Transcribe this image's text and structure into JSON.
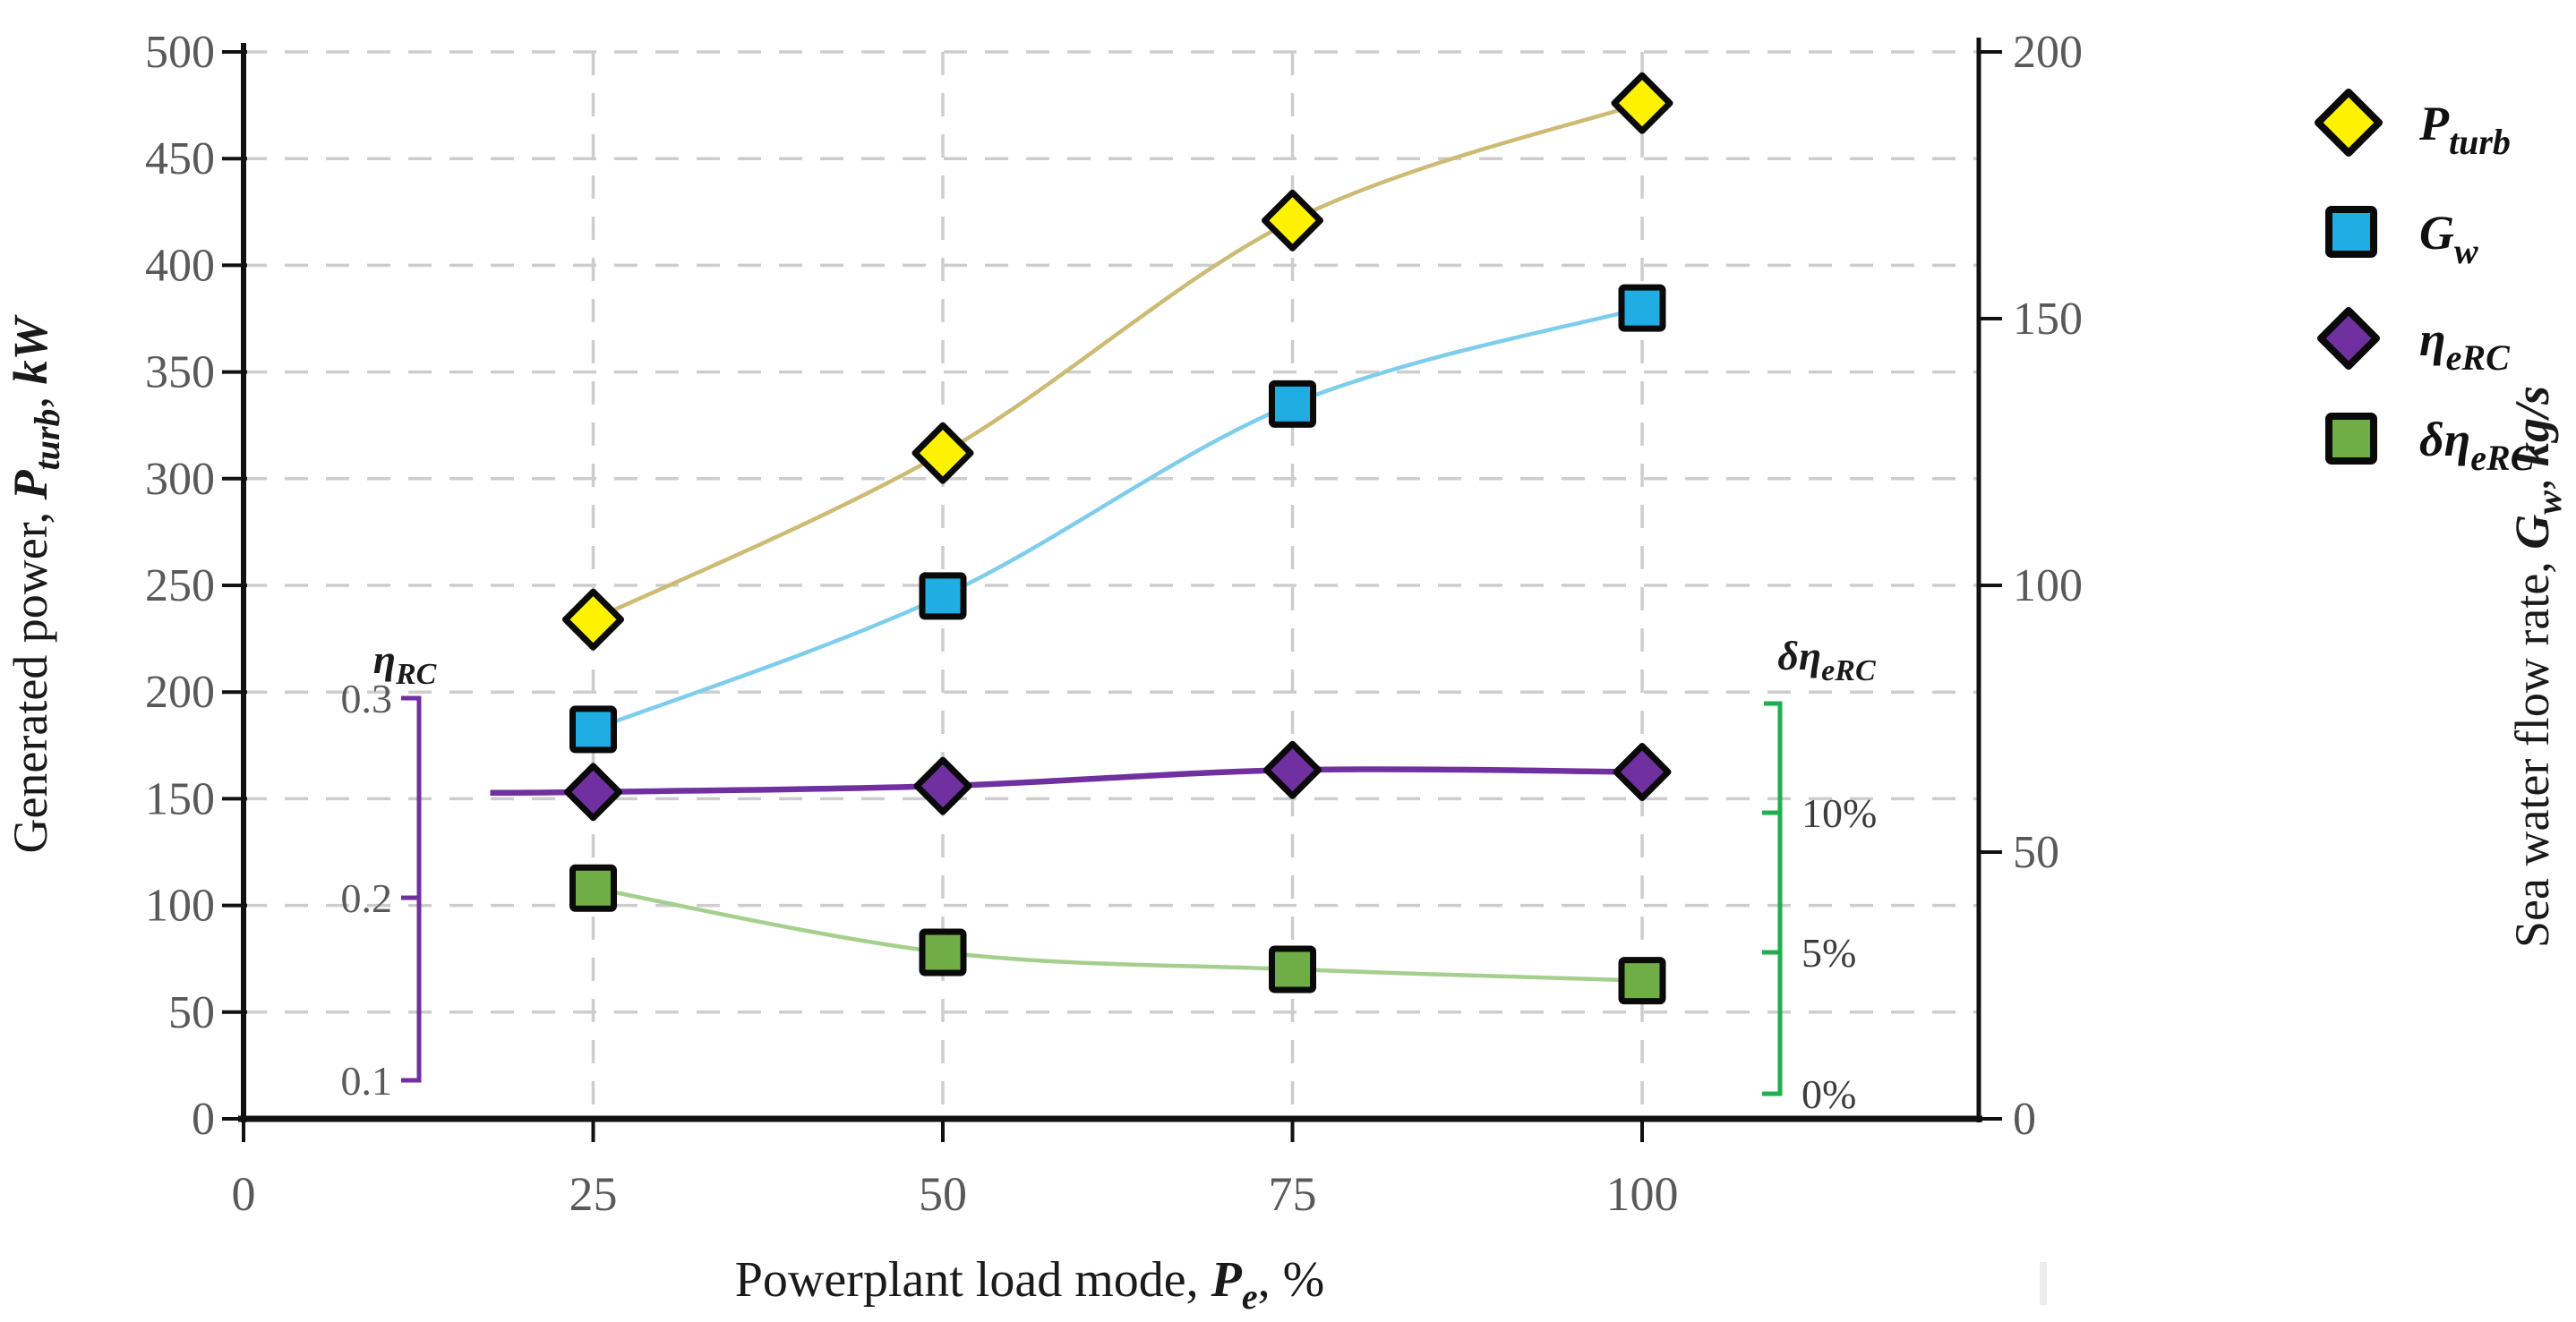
{
  "figure": {
    "background": "#ffffff",
    "artifact_color": "#ededed"
  },
  "chart_data": {
    "type": "line",
    "x": [
      25,
      50,
      75,
      100
    ],
    "x_axis": {
      "title_prefix": "Powerplant load mode, ",
      "title_sym": "P",
      "title_sub": "e",
      "title_suffix": ", %",
      "tick_labels": [
        "0",
        "25",
        "50",
        "75",
        "100"
      ],
      "tick_values": [
        0,
        25,
        50,
        75,
        100
      ],
      "range": [
        0,
        124
      ]
    },
    "left_axis": {
      "title_prefix": "Generated power, ",
      "title_sym": "P",
      "title_sub": "turb",
      "title_suffix": ", ",
      "title_unit": "kW",
      "tick_labels": [
        "0",
        "50",
        "100",
        "150",
        "200",
        "250",
        "300",
        "350",
        "400",
        "450",
        "500"
      ],
      "tick_values": [
        0,
        50,
        100,
        150,
        200,
        250,
        300,
        350,
        400,
        450,
        500
      ],
      "range": [
        0,
        500
      ]
    },
    "right_axis": {
      "title_prefix": "Sea water flow rate, ",
      "title_sym": "G",
      "title_sub": "w",
      "title_suffix": ", ",
      "title_unit": "kg/s",
      "tick_labels": [
        "0",
        "50",
        "100",
        "150",
        "200"
      ],
      "tick_values": [
        0,
        50,
        100,
        150,
        200
      ],
      "range": [
        0,
        200
      ]
    },
    "eta_axis": {
      "label_sym": "η",
      "label_sub": "RC",
      "tick_labels": [
        "0.1",
        "0.2",
        "0.3"
      ],
      "tick_values": [
        0.1,
        0.2,
        0.3
      ],
      "color": "#7030a0"
    },
    "delta_axis": {
      "label_sym": "δη",
      "label_sub": "eRC",
      "tick_labels": [
        "0%",
        "5%",
        "10%"
      ],
      "tick_values": [
        0,
        5,
        10
      ],
      "color": "#1eb04e"
    },
    "grid": {
      "on": true,
      "color": "#cdcdcd"
    },
    "axis_color": "#111111",
    "series": [
      {
        "name": "P_turb",
        "axis": "left",
        "units": "kW",
        "marker": "diamond",
        "marker_fill": "#fef200",
        "marker_edge": "#0a0a0a",
        "line_color": "#cdbb74",
        "values": [
          234,
          312,
          421,
          476
        ]
      },
      {
        "name": "G_w",
        "axis": "right",
        "units": "kg/s",
        "marker": "square",
        "marker_fill": "#1fade4",
        "marker_edge": "#0a0a0a",
        "line_color": "#7fcdec",
        "values": [
          73,
          98,
          134,
          152
        ]
      },
      {
        "name": "eta_eRC",
        "axis": "eta",
        "units": "",
        "marker": "diamond",
        "marker_fill": "#7030a0",
        "marker_edge": "#0a0a0a",
        "line_color": "#7030a0",
        "values": [
          0.253,
          0.256,
          0.264,
          0.263
        ]
      },
      {
        "name": "delta_eta_eRC",
        "axis": "delta",
        "units": "%",
        "marker": "square",
        "marker_fill": "#70ad47",
        "marker_edge": "#0a0a0a",
        "line_color": "#a5cf8d",
        "values": [
          7.3,
          5.0,
          4.4,
          4.0
        ]
      }
    ],
    "legend_position": "right"
  },
  "legend": {
    "items": [
      {
        "sym": "P",
        "sub": "turb"
      },
      {
        "sym": "G",
        "sub": "w"
      },
      {
        "sym": "η",
        "sub": "eRC"
      },
      {
        "sym": "δη",
        "sub": "eRC"
      }
    ]
  }
}
